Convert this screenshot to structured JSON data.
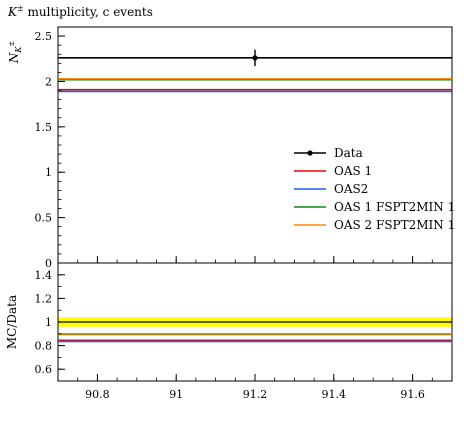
{
  "chart_data": {
    "type": "line",
    "title": "multiplicity, c events",
    "title_symbol": "K",
    "title_symbol_sup": "±",
    "ylabel_main": "N",
    "ylabel_main_sub": "K",
    "ylabel_main_subsup": "±",
    "ylabel_ratio": "MC/Data",
    "xlim": [
      90.7,
      91.7
    ],
    "ylim_main": [
      0,
      2.6
    ],
    "ylim_ratio": [
      0.5,
      1.5
    ],
    "x_ticks": [
      "90.8",
      "91",
      "91.2",
      "91.4",
      "91.6"
    ],
    "y_ticks_main": [
      "0",
      "0.5",
      "1",
      "1.5",
      "2",
      "2.5"
    ],
    "y_ticks_ratio": [
      "0.6",
      "0.8",
      "1",
      "1.2",
      "1.4"
    ],
    "legend_position": "right",
    "data_point": {
      "name": "Data",
      "x": 91.2,
      "y": 2.26,
      "yerr": 0.09,
      "color": "#000000"
    },
    "data_ratio_band": {
      "low": 0.96,
      "high": 1.04,
      "color": "#ffff00"
    },
    "series": [
      {
        "name": "OAS 1",
        "color": "#ee0000",
        "value": 1.91,
        "ratio": 0.845
      },
      {
        "name": "OAS2",
        "color": "#1f5fe0",
        "value": 1.89,
        "ratio": 0.835
      },
      {
        "name": "OAS 1 FSPT2MIN 1",
        "color": "#118811",
        "value": 2.02,
        "ratio": 0.895
      },
      {
        "name": "OAS 2 FSPT2MIN 1",
        "color": "#ff8800",
        "value": 2.03,
        "ratio": 0.9
      }
    ]
  }
}
